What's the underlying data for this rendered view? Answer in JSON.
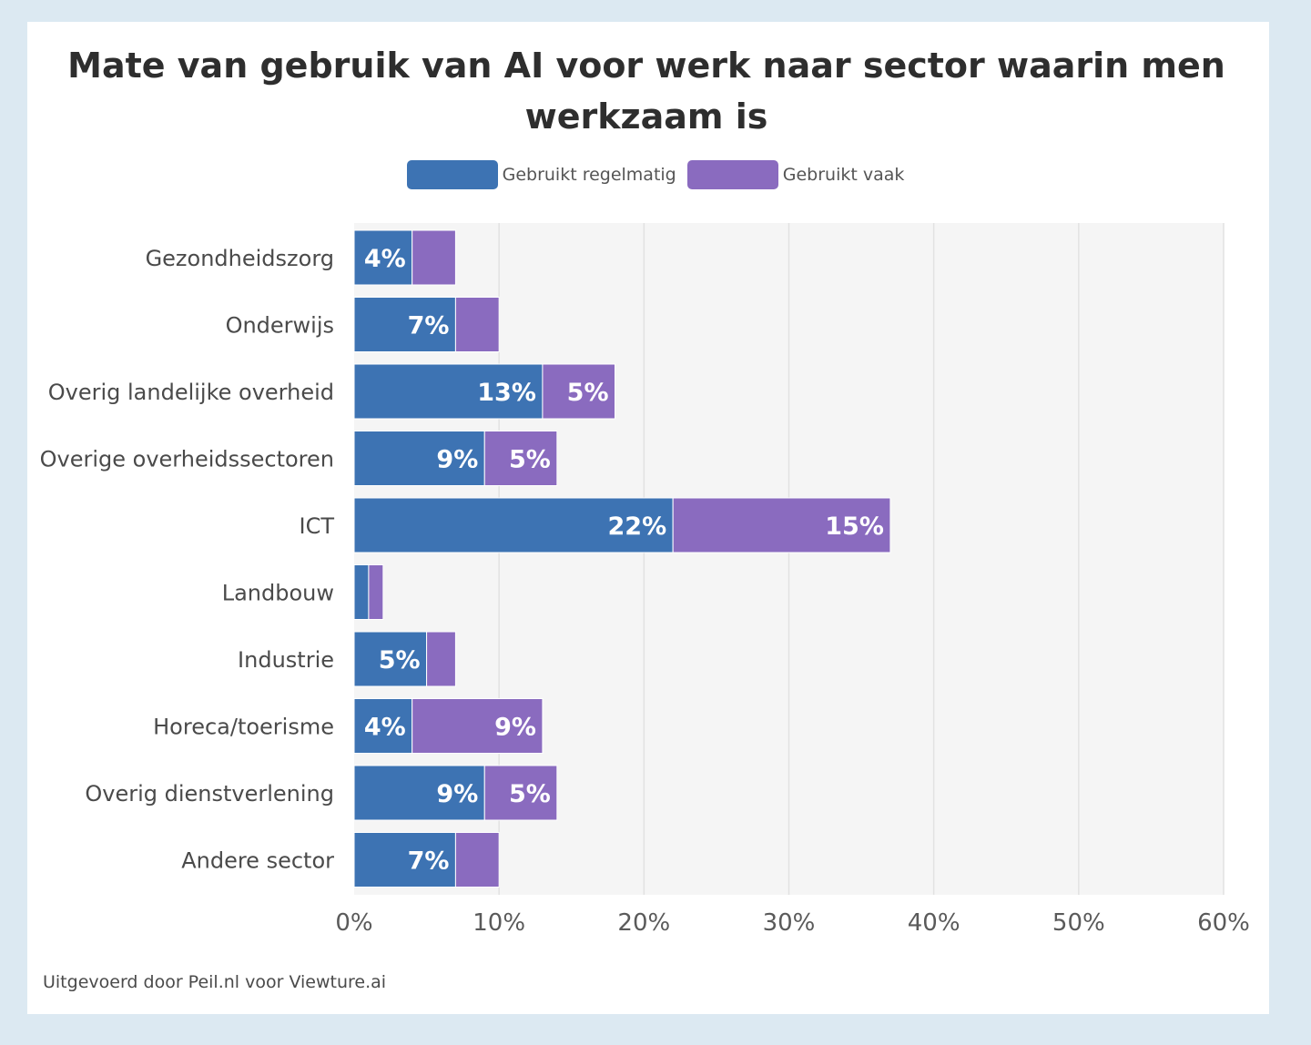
{
  "chart_data": {
    "type": "bar",
    "orientation": "horizontal",
    "stacked": true,
    "title": "Mate van gebruik van AI voor werk naar sector waarin men werkzaam is",
    "categories": [
      "Gezondheidszorg",
      "Onderwijs",
      "Overig landelijke overheid",
      "Overige overheidssectoren",
      "ICT",
      "Landbouw",
      "Industrie",
      "Horeca/toerisme",
      "Overig dienstverlening",
      "Andere sector"
    ],
    "series": [
      {
        "name": "Gebruikt regelmatig",
        "color": "#3d73b3",
        "values": [
          4,
          7,
          13,
          9,
          22,
          1,
          5,
          4,
          9,
          7
        ],
        "labels": [
          "4%",
          "7%",
          "13%",
          "9%",
          "22%",
          "",
          "5%",
          "4%",
          "9%",
          "7%"
        ]
      },
      {
        "name": "Gebruikt vaak",
        "color": "#8a6bbf",
        "values": [
          3,
          3,
          5,
          5,
          15,
          1,
          2,
          9,
          5,
          3
        ],
        "labels": [
          "",
          "",
          "5%",
          "5%",
          "15%",
          "",
          "",
          "9%",
          "5%",
          ""
        ]
      }
    ],
    "xlim": [
      0,
      60
    ],
    "xticks": [
      0,
      10,
      20,
      30,
      40,
      50,
      60
    ],
    "xtick_labels": [
      "0%",
      "10%",
      "20%",
      "30%",
      "40%",
      "50%",
      "60%"
    ],
    "grid": true,
    "legend_position": "top-center",
    "xlabel": "",
    "ylabel": ""
  },
  "source": "Uitgevoerd door Peil.nl voor Viewture.ai"
}
